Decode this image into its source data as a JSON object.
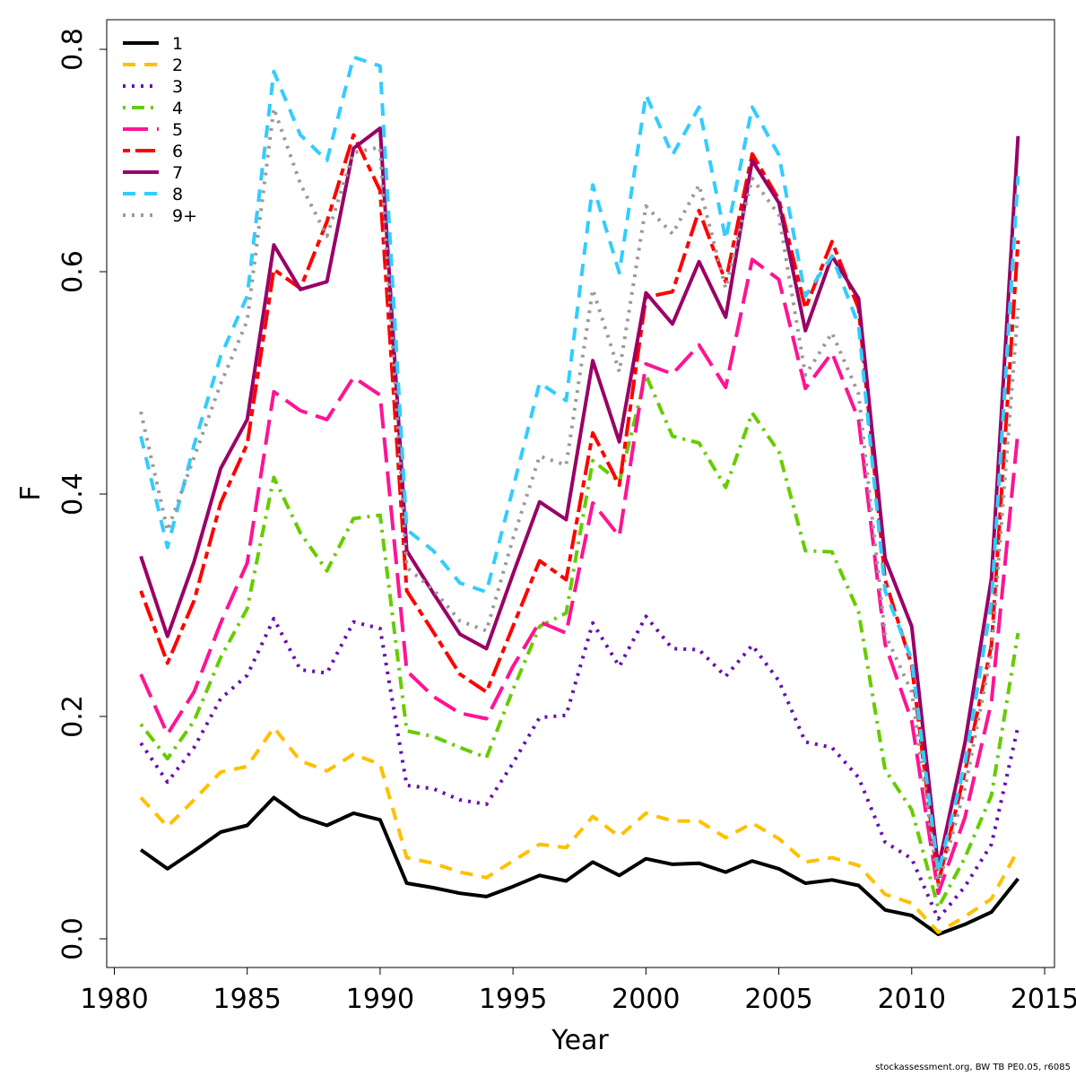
{
  "chart_data": {
    "type": "line",
    "title": "",
    "xlabel": "Year",
    "ylabel": "F",
    "xlim": [
      1980,
      2015
    ],
    "ylim": [
      0,
      0.8
    ],
    "x_ticks": [
      "1980",
      "1985",
      "1990",
      "1995",
      "2000",
      "2005",
      "2010",
      "2015"
    ],
    "y_ticks": [
      "0.0",
      "0.2",
      "0.4",
      "0.6",
      "0.8"
    ],
    "grid": false,
    "legend_position": "top-left",
    "x": [
      1981,
      1982,
      1983,
      1984,
      1985,
      1986,
      1987,
      1988,
      1989,
      1990,
      1991,
      1992,
      1993,
      1994,
      1995,
      1996,
      1997,
      1998,
      1999,
      2000,
      2001,
      2002,
      2003,
      2004,
      2005,
      2006,
      2007,
      2008,
      2009,
      2010,
      2011,
      2012,
      2013,
      2014
    ],
    "series": [
      {
        "name": "1",
        "color": "#000000",
        "dash": "solid",
        "values": [
          0.08,
          0.063,
          0.079,
          0.096,
          0.102,
          0.127,
          0.11,
          0.102,
          0.113,
          0.107,
          0.05,
          0.046,
          0.041,
          0.038,
          0.047,
          0.057,
          0.052,
          0.069,
          0.057,
          0.072,
          0.067,
          0.068,
          0.06,
          0.07,
          0.063,
          0.05,
          0.053,
          0.048,
          0.026,
          0.021,
          0.004,
          0.013,
          0.024,
          0.054
        ]
      },
      {
        "name": "2",
        "color": "#FFC000",
        "dash": "dashed",
        "values": [
          0.127,
          0.101,
          0.125,
          0.15,
          0.155,
          0.19,
          0.16,
          0.151,
          0.166,
          0.157,
          0.073,
          0.068,
          0.06,
          0.055,
          0.07,
          0.085,
          0.082,
          0.11,
          0.092,
          0.113,
          0.106,
          0.106,
          0.091,
          0.104,
          0.09,
          0.069,
          0.073,
          0.066,
          0.04,
          0.032,
          0.006,
          0.02,
          0.036,
          0.08
        ]
      },
      {
        "name": "3",
        "color": "#6A0DAD",
        "dash": "dotted",
        "values": [
          0.176,
          0.141,
          0.172,
          0.216,
          0.237,
          0.288,
          0.242,
          0.239,
          0.285,
          0.279,
          0.138,
          0.135,
          0.125,
          0.121,
          0.158,
          0.199,
          0.201,
          0.284,
          0.245,
          0.29,
          0.261,
          0.26,
          0.236,
          0.264,
          0.232,
          0.177,
          0.172,
          0.145,
          0.087,
          0.072,
          0.018,
          0.047,
          0.085,
          0.191
        ]
      },
      {
        "name": "4",
        "color": "#66CC00",
        "dash": "dotdash",
        "values": [
          0.193,
          0.162,
          0.196,
          0.253,
          0.297,
          0.415,
          0.365,
          0.331,
          0.378,
          0.381,
          0.187,
          0.182,
          0.172,
          0.163,
          0.224,
          0.281,
          0.293,
          0.43,
          0.411,
          0.507,
          0.452,
          0.446,
          0.406,
          0.473,
          0.438,
          0.349,
          0.348,
          0.294,
          0.152,
          0.116,
          0.028,
          0.073,
          0.129,
          0.275
        ]
      },
      {
        "name": "5",
        "color": "#FF1493",
        "dash": "longdash",
        "values": [
          0.238,
          0.184,
          0.222,
          0.284,
          0.338,
          0.492,
          0.475,
          0.467,
          0.505,
          0.489,
          0.241,
          0.218,
          0.203,
          0.198,
          0.245,
          0.285,
          0.275,
          0.392,
          0.362,
          0.517,
          0.508,
          0.534,
          0.496,
          0.611,
          0.593,
          0.495,
          0.527,
          0.467,
          0.265,
          0.196,
          0.041,
          0.109,
          0.213,
          0.457
        ]
      },
      {
        "name": "6",
        "color": "#FF0000",
        "dash": "twodash",
        "values": [
          0.313,
          0.248,
          0.304,
          0.392,
          0.445,
          0.602,
          0.585,
          0.645,
          0.723,
          0.673,
          0.313,
          0.276,
          0.238,
          0.222,
          0.281,
          0.34,
          0.323,
          0.455,
          0.408,
          0.577,
          0.582,
          0.655,
          0.591,
          0.706,
          0.665,
          0.567,
          0.627,
          0.567,
          0.323,
          0.246,
          0.05,
          0.15,
          0.264,
          0.628
        ]
      },
      {
        "name": "7",
        "color": "#990066",
        "dash": "solid",
        "values": [
          0.344,
          0.272,
          0.339,
          0.423,
          0.467,
          0.624,
          0.584,
          0.591,
          0.711,
          0.729,
          0.349,
          0.311,
          0.274,
          0.261,
          0.328,
          0.393,
          0.377,
          0.52,
          0.447,
          0.581,
          0.553,
          0.609,
          0.559,
          0.7,
          0.662,
          0.547,
          0.614,
          0.576,
          0.342,
          0.281,
          0.064,
          0.176,
          0.324,
          0.722
        ]
      },
      {
        "name": "8",
        "color": "#33CCFF",
        "dash": "dashed",
        "values": [
          0.452,
          0.352,
          0.444,
          0.524,
          0.578,
          0.78,
          0.723,
          0.7,
          0.793,
          0.785,
          0.368,
          0.349,
          0.32,
          0.312,
          0.405,
          0.5,
          0.484,
          0.678,
          0.599,
          0.759,
          0.705,
          0.748,
          0.629,
          0.748,
          0.705,
          0.578,
          0.614,
          0.552,
          0.313,
          0.251,
          0.059,
          0.157,
          0.302,
          0.686
        ]
      },
      {
        "name": "9+",
        "color": "#999999",
        "dash": "dotted",
        "values": [
          0.474,
          0.367,
          0.433,
          0.499,
          0.556,
          0.747,
          0.679,
          0.632,
          0.707,
          0.712,
          0.334,
          0.314,
          0.286,
          0.277,
          0.36,
          0.434,
          0.426,
          0.584,
          0.51,
          0.659,
          0.634,
          0.678,
          0.585,
          0.684,
          0.651,
          0.507,
          0.545,
          0.49,
          0.274,
          0.222,
          0.048,
          0.135,
          0.257,
          0.567
        ]
      }
    ]
  },
  "footer": "stockassessment.org, BW  TB  PE0.05, r6085"
}
